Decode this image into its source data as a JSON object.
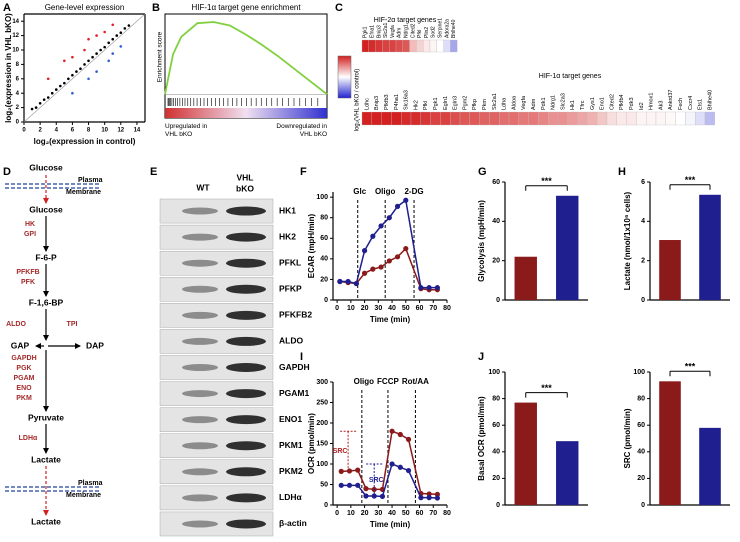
{
  "panel_labels": [
    "A",
    "B",
    "C",
    "D",
    "E",
    "F",
    "G",
    "H",
    "I",
    "J"
  ],
  "chart_data": [
    {
      "type": "scatter",
      "title": "Gene-level expression",
      "x_label": "log₂(expression in control)",
      "y_label": "log₂(expression in VHL bKO)",
      "xlim": [
        0,
        15
      ],
      "ylim": [
        0,
        15
      ],
      "xticks": [
        0,
        2,
        4,
        6,
        8,
        10,
        12,
        14
      ],
      "yticks": [
        0,
        2,
        4,
        6,
        8,
        10,
        12,
        14
      ],
      "series": [
        {
          "color": "#000000",
          "x": [
            1,
            1.5,
            2,
            2.5,
            3,
            3.5,
            4,
            4.5,
            5,
            5.5,
            6,
            6.5,
            7,
            7.5,
            8,
            8.5,
            9,
            9.5,
            10,
            10.5,
            11,
            11.5,
            12,
            12.5,
            13
          ],
          "values": [
            1.8,
            2.0,
            2.6,
            3.1,
            3.4,
            4.0,
            4.5,
            5.0,
            5.4,
            6.0,
            6.5,
            7.0,
            7.4,
            8.0,
            8.5,
            9.0,
            9.5,
            10.0,
            10.4,
            11.0,
            11.5,
            12.0,
            12.4,
            13.0,
            13.4
          ]
        },
        {
          "color": "#e0202a",
          "x": [
            3,
            5,
            6,
            7.5,
            8,
            9,
            10,
            11
          ],
          "values": [
            6,
            8.5,
            9,
            10,
            11.5,
            12,
            12.5,
            13.5
          ]
        },
        {
          "color": "#2f5fd0",
          "x": [
            6,
            8,
            9,
            10.5,
            11,
            12
          ],
          "values": [
            4,
            6,
            7,
            8.5,
            9.5,
            10.5
          ]
        }
      ]
    },
    {
      "type": "enrichment",
      "title": "HIF-1α target gene enrichment",
      "y_label": "Enrichment score",
      "left_label": "Upregulated in VHL bKO",
      "right_label": "Downregulated in VHL bKO",
      "xlim": [
        0,
        100
      ],
      "ylim": [
        -0.05,
        0.7
      ],
      "color": "#80d040",
      "x": [
        0,
        5,
        10,
        20,
        30,
        40,
        50,
        60,
        70,
        80,
        90,
        100
      ],
      "values": [
        0,
        0.35,
        0.5,
        0.62,
        0.63,
        0.6,
        0.52,
        0.43,
        0.33,
        0.22,
        0.11,
        0
      ]
    },
    {
      "type": "line",
      "y_label": "ECAR (mpH/min)",
      "x_label": "Time (min)",
      "xlim": [
        -3,
        80
      ],
      "ylim": [
        0,
        105
      ],
      "xticks": [
        0,
        10,
        20,
        30,
        40,
        50,
        60,
        70,
        80
      ],
      "yticks": [
        0,
        20,
        40,
        60,
        80,
        100
      ],
      "markers": [
        {
          "label": "Glc",
          "x": 15
        },
        {
          "label": "Oligo",
          "x": 35
        },
        {
          "label": "2-DG",
          "x": 56
        }
      ],
      "x": [
        2,
        8,
        14,
        20,
        26,
        32,
        38,
        44,
        50,
        61,
        67,
        73
      ],
      "series": [
        {
          "color": "#8b1a1a",
          "values": [
            18,
            17,
            16,
            26,
            30,
            32,
            38,
            42,
            50,
            11,
            10,
            10
          ]
        },
        {
          "color": "#1f1f8f",
          "values": [
            18,
            18,
            16,
            48,
            62,
            72,
            80,
            91,
            97,
            12,
            12,
            12
          ]
        }
      ]
    },
    {
      "type": "bar",
      "y_label": "Glycolysis (mpH/min)",
      "categories": [
        null,
        null
      ],
      "values": [
        22,
        53
      ],
      "colors": [
        "#8b1a1a",
        "#1f1f8f"
      ],
      "ylim": [
        0,
        60
      ],
      "yticks": [
        0,
        20,
        40,
        60
      ],
      "annotation": "***"
    },
    {
      "type": "bar",
      "y_label": "Lactate (nmol/1x10⁶ cells)",
      "categories": [
        null,
        null
      ],
      "values": [
        3.05,
        5.35
      ],
      "colors": [
        "#8b1a1a",
        "#1f1f8f"
      ],
      "ylim": [
        0,
        6
      ],
      "yticks": [
        0,
        2,
        4,
        6
      ],
      "annotation": "***"
    },
    {
      "type": "line",
      "y_label": "OCR (pmol/min)",
      "x_label": "Time (min)",
      "xlim": [
        -3,
        80
      ],
      "ylim": [
        0,
        300
      ],
      "xticks": [
        0,
        10,
        20,
        30,
        40,
        50,
        60,
        70,
        80
      ],
      "yticks": [
        0,
        50,
        100,
        150,
        200,
        250,
        300
      ],
      "markers": [
        {
          "label": "Oligo",
          "x": 18
        },
        {
          "label": "FCCP",
          "x": 37
        },
        {
          "label": "Rot/AA",
          "x": 57
        }
      ],
      "src_labels": [
        "SRC",
        "SRC"
      ],
      "x": [
        3,
        9,
        15,
        21,
        27,
        33,
        40,
        46,
        52,
        61,
        67,
        73
      ],
      "series": [
        {
          "color": "#8b1a1a",
          "values": [
            82,
            83,
            85,
            40,
            38,
            38,
            180,
            172,
            160,
            28,
            27,
            26
          ]
        },
        {
          "color": "#1f1f8f",
          "values": [
            48,
            48,
            48,
            22,
            22,
            21,
            100,
            92,
            84,
            18,
            18,
            17
          ]
        }
      ]
    },
    {
      "type": "bar",
      "y_label": "Basal OCR (pmol/min)",
      "categories": [
        null,
        null
      ],
      "values": [
        77,
        48
      ],
      "colors": [
        "#8b1a1a",
        "#1f1f8f"
      ],
      "ylim": [
        0,
        100
      ],
      "yticks": [
        0,
        20,
        40,
        60,
        80,
        100
      ],
      "annotation": "***"
    },
    {
      "type": "bar",
      "y_label": "SRC (pmol/min)",
      "categories": [
        null,
        null
      ],
      "values": [
        93,
        58
      ],
      "colors": [
        "#8b1a1a",
        "#1f1f8f"
      ],
      "ylim": [
        0,
        100
      ],
      "yticks": [
        0,
        20,
        40,
        60,
        80,
        100
      ],
      "annotation": "***"
    }
  ],
  "heatmap": {
    "y_label": "log₂(VHL bKO / control)",
    "clim": [
      -2,
      2
    ],
    "groups": [
      {
        "title": "HIF-2α target genes",
        "genes": [
          "Pgk1",
          "Efna1",
          "Bnip3",
          "Slc2a1",
          "Vegfa",
          "Adm",
          "Ndrg1",
          "Cited2",
          "Pfkl",
          "Plin2",
          "Sod2",
          "Serpine1",
          "Adora2a",
          "Bhlhe40"
        ],
        "values": [
          2.0,
          1.9,
          1.8,
          1.7,
          1.7,
          1.6,
          1.5,
          0.6,
          0.4,
          0.2,
          0.1,
          0,
          -0.3,
          -0.8
        ]
      },
      {
        "title": "HIF-1α target genes",
        "genes": [
          "Ldhc",
          "Bnip3",
          "Pfkfb3",
          "P4ha1",
          "Slc16a3",
          "Hk2",
          "Pfkl",
          "Pgk1",
          "Egln1",
          "Egln3",
          "Pgm2",
          "Pfkp",
          "Pkm",
          "Slc2a1",
          "Ldha",
          "Aldoa",
          "Vegfa",
          "Adm",
          "Pdk1",
          "Ndrg1",
          "Slc2a3",
          "Hk1",
          "Tfrc",
          "Gys1",
          "Eno1",
          "Cited2",
          "Pfkfb4",
          "Pdk3",
          "Id2",
          "Hmox1",
          "Ak3",
          "Ankrd37",
          "Fech",
          "Cxcr4",
          "Ets1",
          "Bhlhe40"
        ],
        "values": [
          2.3,
          2.2,
          2.1,
          2.0,
          1.9,
          1.9,
          1.8,
          1.7,
          1.7,
          1.6,
          1.5,
          1.5,
          1.4,
          1.4,
          1.3,
          1.3,
          1.2,
          1.2,
          1.1,
          1.0,
          1.0,
          0.9,
          0.8,
          0.7,
          0.5,
          0.3,
          0.2,
          0.2,
          0.1,
          0.1,
          0.1,
          0.05,
          0,
          -0.1,
          -0.3,
          -0.6
        ]
      }
    ]
  },
  "pathway": {
    "metabolites": [
      "Glucose",
      "Glucose",
      "F-6-P",
      "F-1,6-BP",
      "GAP",
      "DAP",
      "Pyruvate",
      "Lactate",
      "Lactate"
    ],
    "membranes": [
      [
        "Plasma",
        "Membrane"
      ],
      [
        "Plasma",
        "Membrane"
      ]
    ],
    "enzymes": [
      [
        "HK",
        "GPI"
      ],
      [
        "PFKFB",
        "PFK"
      ],
      [
        "ALDO",
        "TPI"
      ],
      [
        "GAPDH",
        "PGK",
        "PGAM",
        "ENO",
        "PKM"
      ],
      [
        "LDHα"
      ]
    ]
  },
  "blot": {
    "columns": [
      [
        "WT"
      ],
      [
        "VHL",
        "bKO"
      ]
    ],
    "proteins": [
      "HK1",
      "HK2",
      "PFKL",
      "PFKP",
      "PFKFB2",
      "ALDO",
      "GAPDH",
      "PGAM1",
      "ENO1",
      "PKM1",
      "PKM2",
      "LDHα",
      "β-actin"
    ]
  }
}
